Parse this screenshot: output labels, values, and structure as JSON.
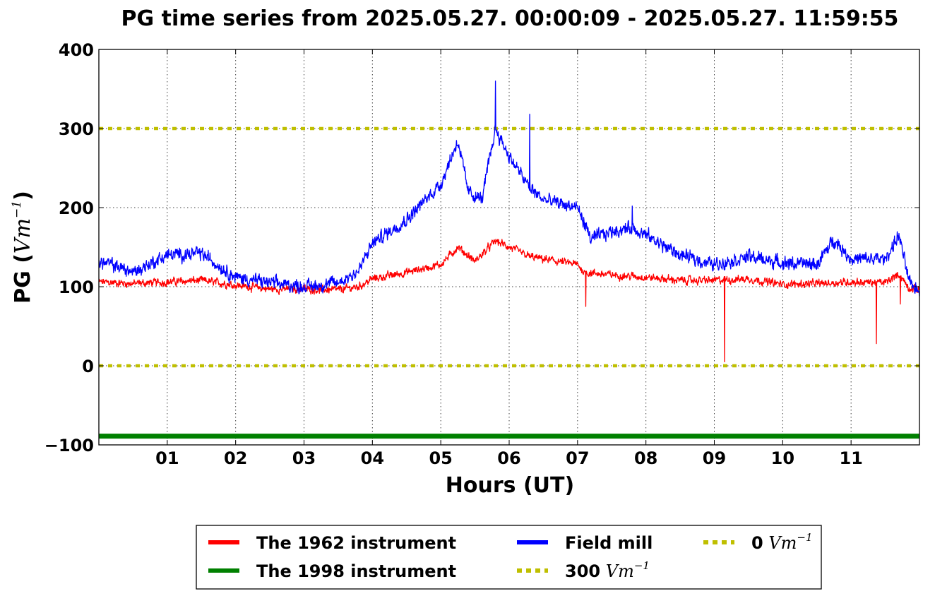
{
  "chart_data": {
    "type": "line",
    "title": "PG time series from 2025.05.27. 00:00:09 - 2025.05.27. 11:59:55",
    "xlabel": "Hours (UT)",
    "ylabel_main": "PG (",
    "ylabel_unit": "Vm",
    "ylabel_exp": "−1",
    "ylabel_close": ")",
    "xlim": [
      0,
      12
    ],
    "ylim": [
      -100,
      400
    ],
    "x_ticks": [
      1,
      2,
      3,
      4,
      5,
      6,
      7,
      8,
      9,
      10,
      11
    ],
    "x_tick_labels": [
      "01",
      "02",
      "03",
      "04",
      "05",
      "06",
      "07",
      "08",
      "09",
      "10",
      "11"
    ],
    "y_ticks": [
      -100,
      0,
      100,
      200,
      300,
      400
    ],
    "y_tick_labels": [
      "−100",
      "0",
      "100",
      "200",
      "300",
      "400"
    ],
    "grid": true,
    "legend_position": "below-center",
    "series": [
      {
        "name": "The 1962 instrument",
        "color": "#ff0000",
        "points": [
          [
            0,
            106
          ],
          [
            0.5,
            104
          ],
          [
            1,
            106
          ],
          [
            1.5,
            108
          ],
          [
            2,
            102
          ],
          [
            2.5,
            97
          ],
          [
            3,
            97
          ],
          [
            3.5,
            96
          ],
          [
            3.8,
            100
          ],
          [
            4,
            110
          ],
          [
            4.5,
            118
          ],
          [
            5,
            128
          ],
          [
            5.25,
            150
          ],
          [
            5.5,
            132
          ],
          [
            5.8,
            158
          ],
          [
            6,
            150
          ],
          [
            6.3,
            138
          ],
          [
            6.5,
            135
          ],
          [
            7,
            128
          ],
          [
            7.1,
            118
          ],
          [
            7.5,
            115
          ],
          [
            8,
            112
          ],
          [
            8.5,
            108
          ],
          [
            9,
            108
          ],
          [
            9.5,
            110
          ],
          [
            10,
            103
          ],
          [
            10.5,
            104
          ],
          [
            11,
            106
          ],
          [
            11.5,
            105
          ],
          [
            11.7,
            116
          ],
          [
            11.85,
            98
          ],
          [
            12,
            96
          ]
        ],
        "noise": 7,
        "spikes": [
          [
            7.12,
            75
          ],
          [
            9.15,
            5
          ],
          [
            11.37,
            28
          ],
          [
            11.72,
            78
          ]
        ]
      },
      {
        "name": "The 1998 instrument",
        "color": "#008000",
        "points": [
          [
            0,
            -89
          ],
          [
            12,
            -89
          ]
        ],
        "noise": 0,
        "spikes": []
      },
      {
        "name": "Field mill",
        "color": "#0000ff",
        "points": [
          [
            0,
            132
          ],
          [
            0.3,
            125
          ],
          [
            0.5,
            118
          ],
          [
            1,
            140
          ],
          [
            1.5,
            142
          ],
          [
            2,
            112
          ],
          [
            2.5,
            105
          ],
          [
            3,
            100
          ],
          [
            3.5,
            105
          ],
          [
            3.8,
            120
          ],
          [
            4,
            155
          ],
          [
            4.5,
            185
          ],
          [
            5,
            230
          ],
          [
            5.25,
            285
          ],
          [
            5.4,
            220
          ],
          [
            5.6,
            210
          ],
          [
            5.8,
            300
          ],
          [
            6,
            265
          ],
          [
            6.3,
            225
          ],
          [
            6.5,
            210
          ],
          [
            7,
            200
          ],
          [
            7.2,
            160
          ],
          [
            7.5,
            170
          ],
          [
            7.8,
            175
          ],
          [
            8,
            165
          ],
          [
            8.5,
            140
          ],
          [
            9,
            128
          ],
          [
            9.5,
            138
          ],
          [
            10,
            130
          ],
          [
            10.5,
            128
          ],
          [
            10.75,
            160
          ],
          [
            11,
            135
          ],
          [
            11.5,
            135
          ],
          [
            11.7,
            165
          ],
          [
            11.85,
            105
          ],
          [
            12,
            95
          ]
        ],
        "noise": 12,
        "spikes": [
          [
            5.8,
            360
          ],
          [
            6.3,
            318
          ],
          [
            7.8,
            202
          ]
        ]
      }
    ],
    "reference_lines": [
      {
        "name": "300",
        "value": 300,
        "color": "#bfbf00"
      },
      {
        "name": "0",
        "value": 0,
        "color": "#bfbf00"
      }
    ],
    "legend": [
      {
        "label": "The 1962 instrument",
        "unit": "",
        "exp": "",
        "color": "#ff0000",
        "style": "solid"
      },
      {
        "label": "Field mill",
        "unit": "",
        "exp": "",
        "color": "#0000ff",
        "style": "solid"
      },
      {
        "label": "0",
        "unit": "Vm",
        "exp": "−1",
        "color": "#bfbf00",
        "style": "dotted"
      },
      {
        "label": "The 1998 instrument",
        "unit": "",
        "exp": "",
        "color": "#008000",
        "style": "solid"
      },
      {
        "label": "300",
        "unit": "Vm",
        "exp": "−1",
        "color": "#bfbf00",
        "style": "dotted"
      }
    ]
  }
}
